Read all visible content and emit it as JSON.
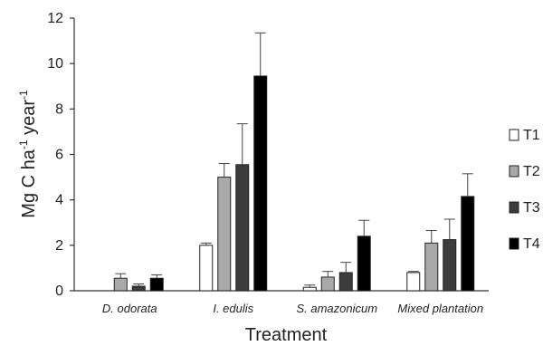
{
  "chart_data": {
    "type": "bar",
    "categories": [
      "D. odorata",
      "I. edulis",
      "S. amazonicum",
      "Mixed plantation"
    ],
    "series": [
      {
        "name": "T1",
        "color": "#ffffff",
        "values": [
          0.0,
          2.0,
          0.15,
          0.8
        ],
        "errors": [
          0.0,
          0.1,
          0.1,
          0.05
        ]
      },
      {
        "name": "T2",
        "color": "#a9a9a9",
        "values": [
          0.55,
          5.0,
          0.6,
          2.1
        ],
        "errors": [
          0.2,
          0.6,
          0.25,
          0.55
        ]
      },
      {
        "name": "T3",
        "color": "#3c3c3c",
        "values": [
          0.2,
          5.55,
          0.8,
          2.25
        ],
        "errors": [
          0.1,
          1.8,
          0.45,
          0.9
        ]
      },
      {
        "name": "T4",
        "color": "#000000",
        "values": [
          0.55,
          9.45,
          2.4,
          4.15
        ],
        "errors": [
          0.15,
          1.9,
          0.7,
          1.0
        ]
      }
    ],
    "xlabel": "Treatment",
    "ylabel": "Mg C ha-1 year-1",
    "ylim": [
      0,
      12
    ],
    "yticks": [
      "0",
      "2",
      "4",
      "6",
      "8",
      "10",
      "12"
    ],
    "legend_position": "right",
    "grid": false
  }
}
